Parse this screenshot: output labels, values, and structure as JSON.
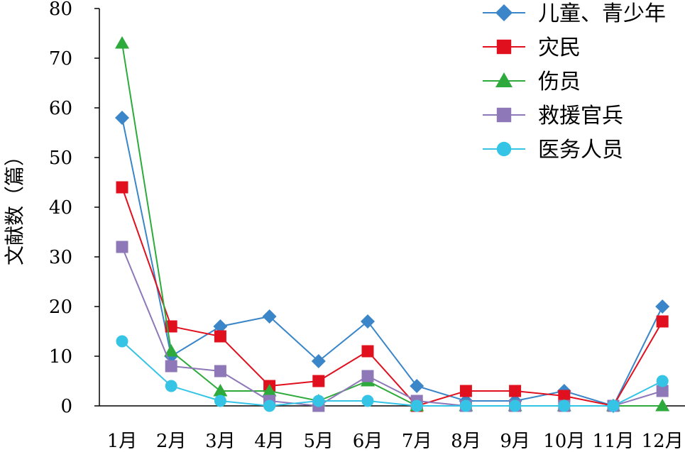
{
  "chart_data": {
    "type": "line",
    "title": "",
    "xlabel": "",
    "ylabel": "文献数（篇）",
    "ylim": [
      0,
      80
    ],
    "yticks": [
      0,
      10,
      20,
      30,
      40,
      50,
      60,
      70,
      80
    ],
    "grid": false,
    "legend_position": "top-right",
    "categories": [
      "1月",
      "2月",
      "3月",
      "4月",
      "5月",
      "6月",
      "7月",
      "8月",
      "9月",
      "10月",
      "11月",
      "12月"
    ],
    "series": [
      {
        "name": "儿童、青少年",
        "color": "#3a86c8",
        "marker": "diamond",
        "values": [
          58,
          10,
          16,
          18,
          9,
          17,
          4,
          1,
          1,
          3,
          0,
          20
        ]
      },
      {
        "name": "灾民",
        "color": "#e0101e",
        "marker": "square",
        "values": [
          44,
          16,
          14,
          4,
          5,
          11,
          0,
          3,
          3,
          2,
          0,
          17
        ]
      },
      {
        "name": "伤员",
        "color": "#2eaa3c",
        "marker": "triangle",
        "values": [
          73,
          11,
          3,
          3,
          1,
          5,
          0,
          0,
          0,
          0,
          0,
          0
        ]
      },
      {
        "name": "救援官兵",
        "color": "#8e78b8",
        "marker": "square",
        "values": [
          32,
          8,
          7,
          1,
          0,
          6,
          1,
          0,
          0,
          0,
          0,
          3
        ]
      },
      {
        "name": "医务人员",
        "color": "#35c4e6",
        "marker": "circle",
        "values": [
          13,
          4,
          1,
          0,
          1,
          1,
          0,
          0,
          0,
          0,
          0,
          5
        ]
      }
    ]
  }
}
